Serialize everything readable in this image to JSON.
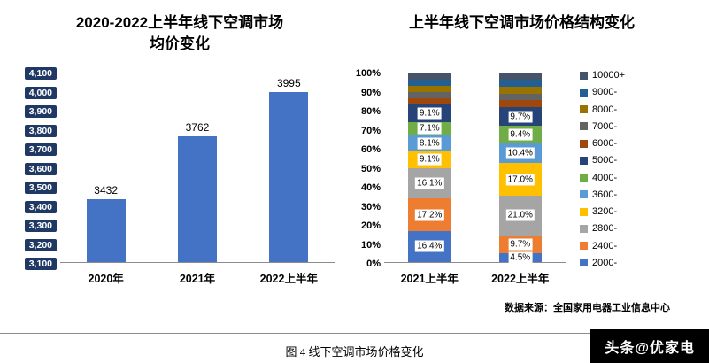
{
  "caption": "图 4 线下空调市场价格变化",
  "source": "数据来源：全国家用电器工业信息中心",
  "watermark": "头条@优家电",
  "chart_data": [
    {
      "type": "bar",
      "title": "2020-2022上半年线下空调市场\n均价变化",
      "categories": [
        "2020年",
        "2021年",
        "2022上半年"
      ],
      "values": [
        3432,
        3762,
        3995
      ],
      "value_labels": [
        "3432",
        "3762",
        "3995"
      ],
      "ylim": [
        3100,
        4100
      ],
      "ytick_labels": [
        "4,100",
        "4,000",
        "3,900",
        "3,800",
        "3,700",
        "3,600",
        "3,500",
        "3,400",
        "3,300",
        "3,200",
        "3,100"
      ],
      "bar_color": "#4472C4",
      "tick_chip_color": "#1F3864",
      "grid": false,
      "legend": "none"
    },
    {
      "type": "stacked-bar-100",
      "title": "上半年线下空调市场价格结构变化",
      "categories": [
        "2021上半年",
        "2022上半年"
      ],
      "ylim_percent": [
        0,
        100
      ],
      "ytick_labels": [
        "100%",
        "90%",
        "80%",
        "70%",
        "60%",
        "50%",
        "40%",
        "30%",
        "20%",
        "10%",
        "0%"
      ],
      "grid": false,
      "legend_position": "right",
      "series": [
        {
          "name": "2000-",
          "color": "#4472C4",
          "values": [
            16.4,
            4.5
          ],
          "labels": [
            "16.4%",
            "4.5%"
          ]
        },
        {
          "name": "2400-",
          "color": "#ED7D31",
          "values": [
            17.2,
            9.7
          ],
          "labels": [
            "17.2%",
            "9.7%"
          ]
        },
        {
          "name": "2800-",
          "color": "#A5A5A5",
          "values": [
            16.1,
            21.0
          ],
          "labels": [
            "16.1%",
            "21.0%"
          ]
        },
        {
          "name": "3200-",
          "color": "#FFC000",
          "values": [
            9.1,
            17.0
          ],
          "labels": [
            "9.1%",
            "17.0%"
          ]
        },
        {
          "name": "3600-",
          "color": "#5B9BD5",
          "values": [
            8.1,
            10.4
          ],
          "labels": [
            "8.1%",
            "10.4%"
          ]
        },
        {
          "name": "4000-",
          "color": "#70AD47",
          "values": [
            7.1,
            9.4
          ],
          "labels": [
            "7.1%",
            "9.4%"
          ]
        },
        {
          "name": "5000-",
          "color": "#264478",
          "values": [
            9.1,
            9.7
          ],
          "labels": [
            "9.1%",
            "9.7%"
          ]
        },
        {
          "name": "6000-",
          "color": "#9E480E",
          "values": [
            3.5,
            3.8
          ],
          "labels": [
            null,
            null
          ]
        },
        {
          "name": "7000-",
          "color": "#636363",
          "values": [
            3.0,
            3.5
          ],
          "labels": [
            null,
            null
          ]
        },
        {
          "name": "8000-",
          "color": "#997300",
          "values": [
            3.5,
            3.7
          ],
          "labels": [
            null,
            null
          ]
        },
        {
          "name": "9000-",
          "color": "#255E91",
          "values": [
            3.4,
            3.6
          ],
          "labels": [
            null,
            null
          ]
        },
        {
          "name": "10000+",
          "color": "#44546A",
          "values": [
            3.5,
            3.7
          ],
          "labels": [
            null,
            null
          ]
        }
      ]
    }
  ]
}
